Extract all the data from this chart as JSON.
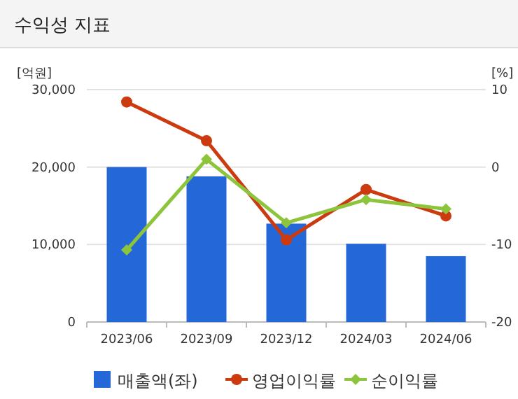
{
  "chart_data": {
    "type": "bar",
    "title": "수익성 지표",
    "ylabel": "[억원]",
    "y2label": "[%]",
    "categories": [
      "2023/06",
      "2023/09",
      "2023/12",
      "2024/03",
      "2024/06"
    ],
    "series": [
      {
        "name": "매출액(좌)",
        "color": "#2468d8",
        "values": [
          20000,
          18800,
          12700,
          10100,
          8500
        ]
      },
      {
        "name": "영업이익률",
        "type": "line",
        "axis": "y2",
        "color": "#cc3a10",
        "marker": "circle",
        "values": [
          8.4,
          3.4,
          -9.4,
          -2.9,
          -6.3
        ]
      },
      {
        "name": "순이익률",
        "type": "line",
        "axis": "y2",
        "color": "#8cc43c",
        "marker": "diamond",
        "values": [
          -10.7,
          1.0,
          -7.2,
          -4.2,
          -5.4
        ]
      }
    ],
    "ylim": [
      0,
      30000
    ],
    "yticks": [
      {
        "value": 0,
        "label": "0"
      },
      {
        "value": 10000,
        "label": "10,000"
      },
      {
        "value": 20000,
        "label": "20,000"
      },
      {
        "value": 30000,
        "label": "30,000"
      }
    ],
    "y2lim": [
      -20,
      10
    ],
    "y2ticks": [
      -20,
      -10,
      0,
      10
    ],
    "grid": "y",
    "legend": "bottom"
  }
}
